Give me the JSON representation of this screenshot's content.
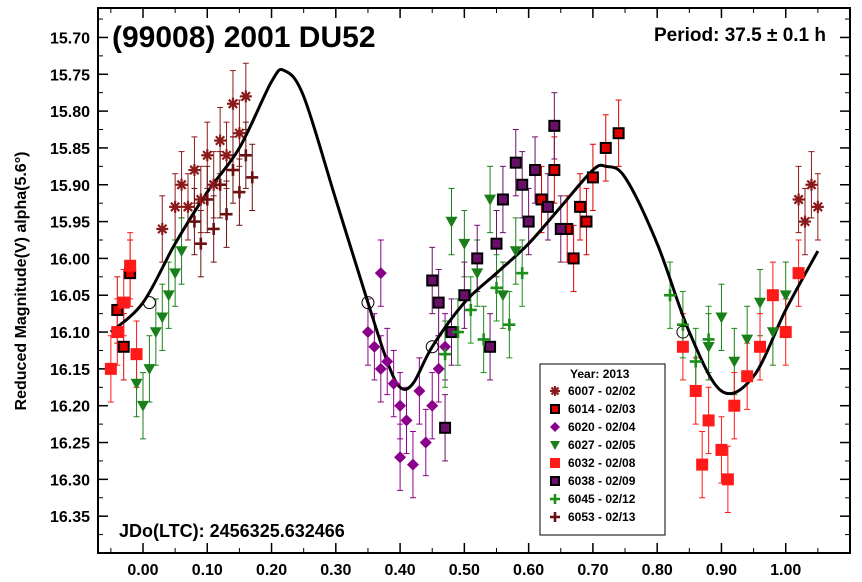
{
  "chart_data": {
    "type": "scatter",
    "title": "(99008) 2001 DU52",
    "period_label": "Period: 37.5 ± 0.1 h",
    "epoch_label": "JDo(LTC): 2456325.632466",
    "ylabel": "Reduced Magnitude(V) alpha(5.6°)",
    "xlabel": "",
    "xlim": [
      -0.07,
      1.1
    ],
    "ylim": [
      15.66,
      16.4
    ],
    "y_inverted": true,
    "x_ticks": [
      "0.00",
      "0.10",
      "0.20",
      "0.30",
      "0.40",
      "0.50",
      "0.60",
      "0.70",
      "0.80",
      "0.90",
      "1.00"
    ],
    "y_ticks": [
      "15.70",
      "15.75",
      "15.80",
      "15.85",
      "15.90",
      "15.95",
      "16.00",
      "16.05",
      "16.10",
      "16.15",
      "16.20",
      "16.25",
      "16.30",
      "16.35"
    ],
    "legend_title": "Year: 2013",
    "legend_position": "bottom-center",
    "grid": false,
    "fit_curve": {
      "x": [
        -0.05,
        0.0,
        0.05,
        0.1,
        0.15,
        0.2,
        0.22,
        0.25,
        0.3,
        0.35,
        0.38,
        0.4,
        0.42,
        0.45,
        0.5,
        0.55,
        0.6,
        0.65,
        0.7,
        0.72,
        0.75,
        0.8,
        0.85,
        0.9,
        0.95,
        1.0,
        1.05
      ],
      "y": [
        16.1,
        16.06,
        15.98,
        15.91,
        15.85,
        15.76,
        15.745,
        15.78,
        15.92,
        16.06,
        16.14,
        16.175,
        16.17,
        16.12,
        16.06,
        16.02,
        15.98,
        15.93,
        15.88,
        15.875,
        15.89,
        15.98,
        16.1,
        16.18,
        16.16,
        16.07,
        15.99
      ]
    },
    "series": [
      {
        "name": "6007 - 02/02",
        "marker": "asterisk",
        "color": "#8b1a1a",
        "x": [
          0.05,
          0.06,
          0.07,
          0.08,
          0.09,
          0.1,
          0.11,
          0.12,
          0.13,
          0.14,
          0.15,
          0.16,
          0.03,
          1.02,
          1.03,
          1.04,
          1.05
        ],
        "y": [
          15.93,
          15.9,
          15.93,
          15.88,
          15.92,
          15.86,
          15.9,
          15.84,
          15.86,
          15.79,
          15.83,
          15.78,
          15.96,
          15.92,
          15.95,
          15.9,
          15.93
        ]
      },
      {
        "name": "6014 - 02/03",
        "marker": "square-open",
        "color": "#e00000",
        "x": [
          -0.04,
          -0.03,
          -0.02,
          0.62,
          0.64,
          0.66,
          0.68,
          0.7,
          0.72,
          0.74,
          0.67,
          0.69
        ],
        "y": [
          16.07,
          16.12,
          16.02,
          15.92,
          15.88,
          15.96,
          15.93,
          15.89,
          15.85,
          15.83,
          16.0,
          15.95
        ]
      },
      {
        "name": "6020 - 02/04",
        "marker": "diamond",
        "color": "#8b008b",
        "x": [
          0.35,
          0.36,
          0.37,
          0.38,
          0.39,
          0.4,
          0.41,
          0.42,
          0.43,
          0.44,
          0.45,
          0.46,
          0.47,
          0.37,
          0.4
        ],
        "y": [
          16.1,
          16.12,
          16.15,
          16.14,
          16.17,
          16.2,
          16.22,
          16.28,
          16.18,
          16.25,
          16.2,
          16.15,
          16.12,
          16.02,
          16.27
        ]
      },
      {
        "name": "6027 - 02/05",
        "marker": "triangle-down",
        "color": "#1a7f1a",
        "x": [
          0.0,
          0.01,
          0.02,
          0.03,
          0.04,
          0.05,
          0.06,
          -0.01,
          0.48,
          0.5,
          0.52,
          0.54,
          0.56,
          0.58,
          0.88,
          0.9,
          0.92,
          0.94,
          0.96,
          0.98,
          1.0
        ],
        "y": [
          16.2,
          16.15,
          16.1,
          16.08,
          16.05,
          16.02,
          15.99,
          16.17,
          15.95,
          15.98,
          16.02,
          15.92,
          16.05,
          15.99,
          16.12,
          16.08,
          16.14,
          16.11,
          16.06,
          16.1,
          16.05
        ]
      },
      {
        "name": "6032 - 02/08",
        "marker": "square-filled",
        "color": "#ff1a1a",
        "x": [
          -0.05,
          -0.04,
          -0.03,
          -0.02,
          -0.01,
          0.84,
          0.86,
          0.88,
          0.9,
          0.92,
          0.94,
          0.96,
          0.98,
          1.0,
          1.02,
          0.87,
          0.91
        ],
        "y": [
          16.15,
          16.1,
          16.06,
          16.01,
          16.13,
          16.12,
          16.18,
          16.22,
          16.26,
          16.2,
          16.16,
          16.12,
          16.05,
          16.1,
          16.02,
          16.28,
          16.3
        ]
      },
      {
        "name": "6038 - 02/09",
        "marker": "square-dark",
        "color": "#6a0f6a",
        "x": [
          0.45,
          0.46,
          0.47,
          0.48,
          0.5,
          0.52,
          0.54,
          0.55,
          0.56,
          0.58,
          0.59,
          0.6,
          0.61,
          0.63,
          0.64,
          0.65
        ],
        "y": [
          16.03,
          16.06,
          16.23,
          16.1,
          16.05,
          16.0,
          16.12,
          15.98,
          15.92,
          15.87,
          15.9,
          15.95,
          15.88,
          15.93,
          15.82,
          15.96
        ]
      },
      {
        "name": "6045 - 02/12",
        "marker": "plus",
        "color": "#1a8f1a",
        "x": [
          0.47,
          0.49,
          0.51,
          0.53,
          0.55,
          0.57,
          0.59,
          0.82,
          0.84,
          0.86,
          0.88
        ],
        "y": [
          16.13,
          16.1,
          16.07,
          16.11,
          16.04,
          16.09,
          16.02,
          16.05,
          16.09,
          16.14,
          16.11
        ]
      },
      {
        "name": "6053 - 02/13",
        "marker": "plus",
        "color": "#6b1010",
        "x": [
          0.08,
          0.09,
          0.1,
          0.11,
          0.12,
          0.13,
          0.14,
          0.15,
          0.16,
          0.17
        ],
        "y": [
          15.95,
          15.98,
          15.92,
          15.96,
          15.9,
          15.94,
          15.88,
          15.91,
          15.86,
          15.89
        ]
      }
    ]
  }
}
